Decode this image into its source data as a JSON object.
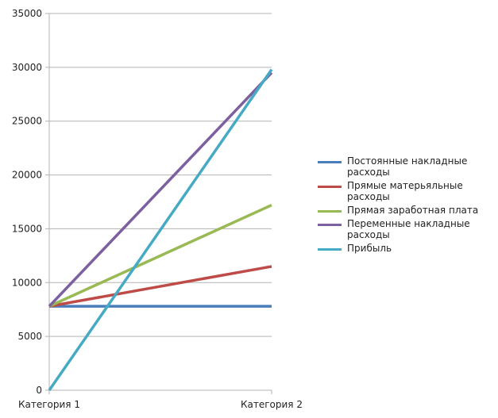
{
  "chart_data": {
    "type": "line",
    "categories": [
      "Категория 1",
      "Категория 2"
    ],
    "series": [
      {
        "name": "Постоянные накладные расходы",
        "color": "#4a7ebb",
        "values": [
          7800,
          7800
        ]
      },
      {
        "name": "Прямые матерьяльные расходы",
        "color": "#be4b48",
        "values": [
          7800,
          11500
        ]
      },
      {
        "name": "Прямая заработная плата",
        "color": "#98b954",
        "values": [
          7800,
          17200
        ]
      },
      {
        "name": "Переменные накладные расходы",
        "color": "#7d60a0",
        "values": [
          7800,
          29500
        ]
      },
      {
        "name": "Прибыль",
        "color": "#46aac5",
        "values": [
          0,
          29800
        ]
      }
    ],
    "ylim": [
      0,
      35000
    ],
    "yticks": [
      0,
      5000,
      10000,
      15000,
      20000,
      25000,
      30000,
      35000
    ],
    "grid": true,
    "legend": "right"
  }
}
